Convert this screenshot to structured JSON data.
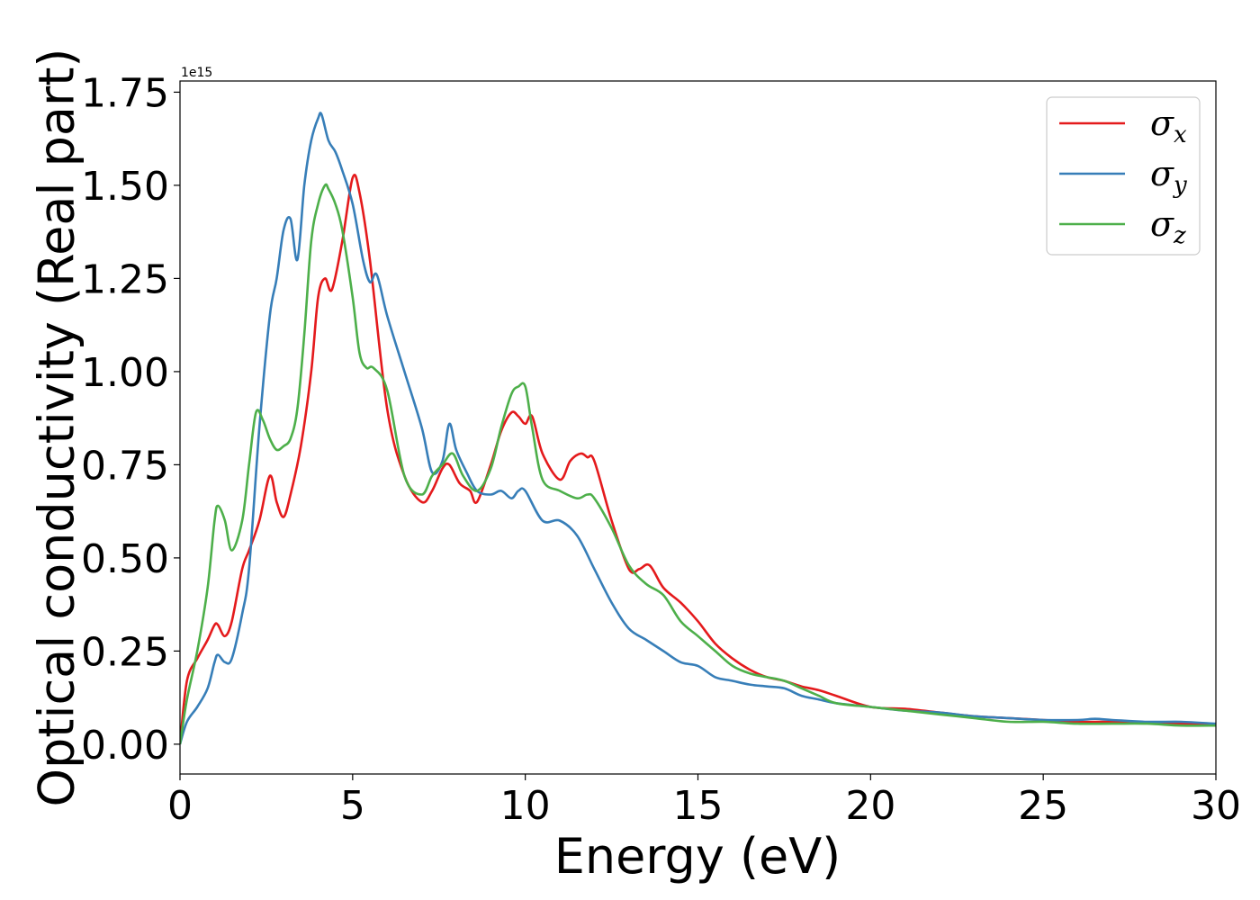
{
  "chart_data": {
    "type": "line",
    "title": "",
    "xlabel": "Energy (eV)",
    "ylabel": "Optical conductivity (Real part)",
    "y_offset_text": "1e15",
    "xlim": [
      0,
      30
    ],
    "ylim": [
      -0.08,
      1.78
    ],
    "xticks": [
      0,
      5,
      10,
      15,
      20,
      25,
      30
    ],
    "xtick_labels": [
      "0",
      "5",
      "10",
      "15",
      "20",
      "25",
      "30"
    ],
    "yticks": [
      0.0,
      0.25,
      0.5,
      0.75,
      1.0,
      1.25,
      1.5,
      1.75
    ],
    "ytick_labels": [
      "0.00",
      "0.25",
      "0.50",
      "0.75",
      "1.00",
      "1.25",
      "1.50",
      "1.75"
    ],
    "grid": false,
    "legend_position": "top-right",
    "series": [
      {
        "name": "σx",
        "symbol": "σ",
        "subscript": "x",
        "color": "#e41a1c",
        "x": [
          0,
          0.2,
          0.5,
          0.8,
          1.0,
          1.1,
          1.3,
          1.5,
          1.8,
          2.0,
          2.3,
          2.6,
          2.8,
          3.0,
          3.2,
          3.5,
          3.8,
          4.0,
          4.2,
          4.4,
          4.7,
          5.0,
          5.2,
          5.5,
          6.0,
          6.5,
          7.0,
          7.3,
          7.6,
          7.8,
          8.1,
          8.4,
          8.6,
          9.0,
          9.3,
          9.6,
          9.8,
          10.0,
          10.2,
          10.5,
          11.0,
          11.3,
          11.6,
          11.8,
          12.0,
          12.5,
          13.0,
          13.3,
          13.6,
          14.0,
          14.5,
          15.0,
          15.5,
          16.0,
          16.5,
          17.0,
          17.5,
          18.0,
          18.5,
          19.0,
          20.0,
          21.0,
          22.0,
          23.0,
          24.0,
          25.0,
          26.0,
          27.0,
          28.0,
          29.0,
          30.0
        ],
        "values": [
          0.0,
          0.17,
          0.23,
          0.28,
          0.32,
          0.32,
          0.29,
          0.33,
          0.47,
          0.52,
          0.6,
          0.72,
          0.65,
          0.61,
          0.67,
          0.8,
          1.0,
          1.2,
          1.25,
          1.22,
          1.35,
          1.52,
          1.48,
          1.3,
          0.9,
          0.72,
          0.65,
          0.68,
          0.74,
          0.75,
          0.7,
          0.68,
          0.65,
          0.75,
          0.84,
          0.89,
          0.88,
          0.86,
          0.88,
          0.78,
          0.71,
          0.76,
          0.78,
          0.77,
          0.76,
          0.6,
          0.47,
          0.47,
          0.48,
          0.42,
          0.38,
          0.33,
          0.27,
          0.23,
          0.2,
          0.18,
          0.17,
          0.155,
          0.145,
          0.13,
          0.1,
          0.095,
          0.085,
          0.075,
          0.07,
          0.065,
          0.06,
          0.06,
          0.058,
          0.055,
          0.05
        ]
      },
      {
        "name": "σy",
        "symbol": "σ",
        "subscript": "y",
        "color": "#377eb8",
        "x": [
          0,
          0.2,
          0.5,
          0.8,
          1.0,
          1.1,
          1.3,
          1.5,
          1.8,
          2.0,
          2.3,
          2.6,
          2.8,
          3.0,
          3.2,
          3.4,
          3.6,
          3.8,
          4.0,
          4.1,
          4.3,
          4.5,
          4.7,
          5.0,
          5.3,
          5.5,
          5.7,
          6.0,
          6.5,
          7.0,
          7.3,
          7.6,
          7.8,
          8.0,
          8.3,
          8.6,
          9.0,
          9.3,
          9.6,
          9.8,
          10.0,
          10.5,
          11.0,
          11.5,
          12.0,
          12.5,
          13.0,
          13.5,
          14.0,
          14.5,
          15.0,
          15.5,
          16.0,
          16.5,
          17.0,
          17.5,
          18.0,
          18.5,
          19.0,
          20.0,
          21.0,
          22.0,
          23.0,
          24.0,
          25.0,
          26.0,
          26.5,
          27.0,
          28.0,
          29.0,
          30.0
        ],
        "values": [
          0.0,
          0.06,
          0.1,
          0.15,
          0.22,
          0.24,
          0.22,
          0.23,
          0.35,
          0.47,
          0.85,
          1.15,
          1.25,
          1.38,
          1.41,
          1.3,
          1.5,
          1.62,
          1.68,
          1.69,
          1.62,
          1.59,
          1.54,
          1.45,
          1.3,
          1.24,
          1.26,
          1.15,
          1.0,
          0.85,
          0.73,
          0.76,
          0.86,
          0.79,
          0.73,
          0.68,
          0.67,
          0.68,
          0.66,
          0.68,
          0.68,
          0.6,
          0.6,
          0.56,
          0.47,
          0.38,
          0.31,
          0.28,
          0.25,
          0.22,
          0.21,
          0.18,
          0.17,
          0.16,
          0.155,
          0.15,
          0.13,
          0.12,
          0.11,
          0.1,
          0.09,
          0.085,
          0.075,
          0.07,
          0.065,
          0.065,
          0.068,
          0.065,
          0.06,
          0.06,
          0.055
        ]
      },
      {
        "name": "σz",
        "symbol": "σ",
        "subscript": "z",
        "color": "#4daf4a",
        "x": [
          0,
          0.2,
          0.5,
          0.8,
          1.0,
          1.1,
          1.3,
          1.5,
          1.8,
          2.0,
          2.2,
          2.4,
          2.6,
          2.8,
          3.0,
          3.2,
          3.4,
          3.6,
          3.8,
          4.0,
          4.2,
          4.3,
          4.5,
          4.7,
          5.0,
          5.2,
          5.4,
          5.6,
          6.0,
          6.5,
          7.0,
          7.3,
          7.6,
          7.9,
          8.2,
          8.6,
          9.0,
          9.3,
          9.6,
          9.8,
          10.0,
          10.2,
          10.5,
          11.0,
          11.5,
          11.8,
          12.0,
          12.5,
          13.0,
          13.5,
          14.0,
          14.5,
          15.0,
          15.5,
          16.0,
          16.5,
          17.0,
          17.5,
          18.0,
          18.5,
          19.0,
          20.0,
          21.0,
          22.0,
          23.0,
          24.0,
          25.0,
          26.0,
          27.0,
          28.0,
          29.0,
          30.0
        ],
        "values": [
          0.0,
          0.12,
          0.25,
          0.42,
          0.6,
          0.64,
          0.6,
          0.52,
          0.6,
          0.75,
          0.89,
          0.87,
          0.82,
          0.79,
          0.8,
          0.82,
          0.9,
          1.1,
          1.35,
          1.45,
          1.5,
          1.49,
          1.45,
          1.38,
          1.2,
          1.05,
          1.01,
          1.01,
          0.95,
          0.72,
          0.67,
          0.72,
          0.75,
          0.78,
          0.72,
          0.68,
          0.74,
          0.85,
          0.94,
          0.96,
          0.96,
          0.85,
          0.71,
          0.68,
          0.66,
          0.67,
          0.66,
          0.58,
          0.48,
          0.43,
          0.4,
          0.33,
          0.29,
          0.25,
          0.21,
          0.19,
          0.18,
          0.17,
          0.15,
          0.13,
          0.11,
          0.1,
          0.09,
          0.08,
          0.07,
          0.06,
          0.06,
          0.055,
          0.055,
          0.055,
          0.05,
          0.05
        ]
      }
    ]
  }
}
